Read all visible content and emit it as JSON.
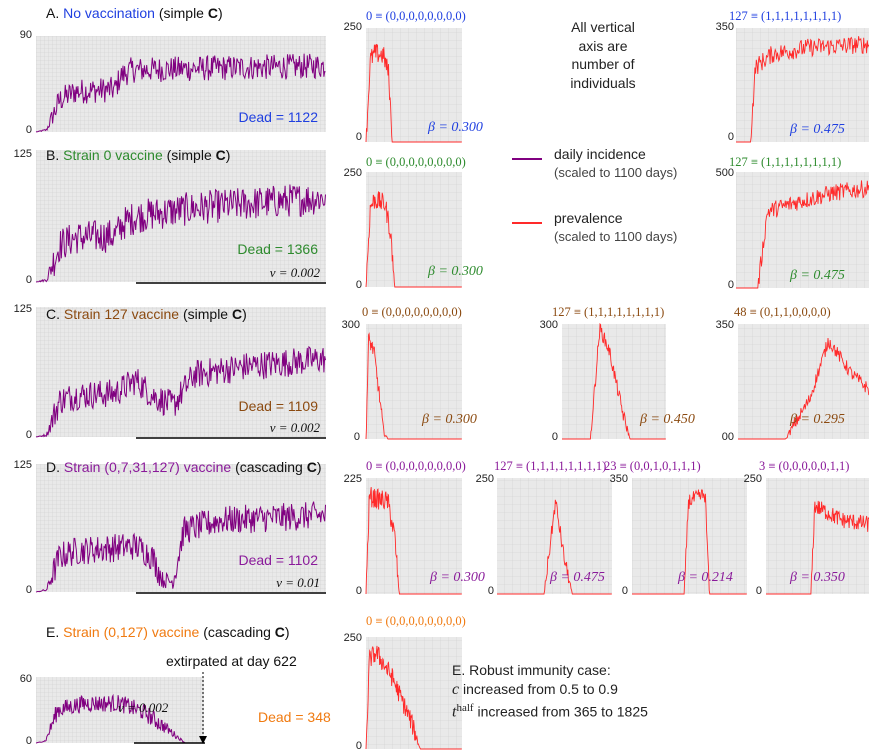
{
  "colors": {
    "incidence": "#800080",
    "prevalence": "#ff2a2a",
    "blue": "#1f3fe0",
    "green": "#2e8b2e",
    "brown": "#8b4a10",
    "purple": "#8a1a9a",
    "orange": "#f07a10",
    "grid_bg": "#e9e9e9"
  },
  "axis_note": [
    "All vertical",
    "axis are",
    "number of",
    "individuals"
  ],
  "legend": [
    {
      "label": "daily incidence",
      "sub": "(scaled to 1100 days)",
      "color": "incidence"
    },
    {
      "label": "prevalence",
      "sub": "(scaled to 1100 days)",
      "color": "prevalence"
    }
  ],
  "robust": {
    "title": "E. Robust immunity case:",
    "c_sym": "c",
    "c_text": "increased from 0.5 to 0.9",
    "t_sym": "t",
    "t_sup": "half",
    "t_text": "increased from 365 to 1825"
  },
  "chart_data": [
    {
      "type": "line",
      "panel": "A",
      "title_prefix": "A.",
      "title_colored": "No vaccination",
      "title_suffix_pre": "(simple ",
      "title_bold": "C",
      "title_suffix_post": ")",
      "title_color": "blue",
      "ylim": [
        0,
        90
      ],
      "ytick_top": "90",
      "ytick_bottom": "0",
      "dead_label": "Dead = 1122",
      "dead": 1122,
      "v_label": "",
      "extirpated": "",
      "series": "incidence",
      "profile": [
        [
          0,
          0
        ],
        [
          40,
          2
        ],
        [
          90,
          30
        ],
        [
          150,
          38
        ],
        [
          300,
          40
        ],
        [
          320,
          52
        ],
        [
          360,
          58
        ],
        [
          700,
          60
        ],
        [
          1100,
          62
        ]
      ],
      "noise": 12
    },
    {
      "type": "line",
      "panel": "B",
      "title_prefix": "B.",
      "title_colored": "Strain 0 vaccine",
      "title_suffix_pre": "(simple ",
      "title_bold": "C",
      "title_suffix_post": ")",
      "title_color": "green",
      "ylim": [
        0,
        125
      ],
      "ytick_top": "125",
      "ytick_bottom": "0",
      "dead_label": "Dead = 1366",
      "dead": 1366,
      "v_label": "v = 0.002",
      "extirpated": "",
      "series": "incidence",
      "profile": [
        [
          0,
          0
        ],
        [
          40,
          2
        ],
        [
          90,
          35
        ],
        [
          150,
          42
        ],
        [
          300,
          44
        ],
        [
          330,
          55
        ],
        [
          380,
          62
        ],
        [
          600,
          70
        ],
        [
          1100,
          80
        ]
      ],
      "noise": 16
    },
    {
      "type": "line",
      "panel": "C",
      "title_prefix": "C.",
      "title_colored": "Strain 127 vaccine",
      "title_suffix_pre": "(simple ",
      "title_bold": "C",
      "title_suffix_post": ")",
      "title_color": "brown",
      "ylim": [
        0,
        125
      ],
      "ytick_top": "125",
      "ytick_bottom": "0",
      "dead_label": "Dead = 1109",
      "dead": 1109,
      "v_label": "v = 0.002",
      "extirpated": "",
      "series": "incidence",
      "profile": [
        [
          0,
          0
        ],
        [
          40,
          2
        ],
        [
          90,
          35
        ],
        [
          150,
          40
        ],
        [
          300,
          42
        ],
        [
          380,
          55
        ],
        [
          440,
          40
        ],
        [
          520,
          30
        ],
        [
          600,
          60
        ],
        [
          800,
          68
        ],
        [
          1100,
          75
        ]
      ],
      "noise": 14
    },
    {
      "type": "line",
      "panel": "D",
      "title_prefix": "D.",
      "title_colored": "Strain (0,7,31,127) vaccine",
      "title_suffix_pre": "(cascading ",
      "title_bold": "C",
      "title_suffix_post": ")",
      "title_color": "purple",
      "ylim": [
        0,
        125
      ],
      "ytick_top": "125",
      "ytick_bottom": "0",
      "dead_label": "Dead = 1102",
      "dead": 1102,
      "v_label": "v = 0.01",
      "extirpated": "",
      "series": "incidence",
      "profile": [
        [
          0,
          0
        ],
        [
          40,
          2
        ],
        [
          90,
          35
        ],
        [
          150,
          40
        ],
        [
          380,
          45
        ],
        [
          440,
          35
        ],
        [
          480,
          12
        ],
        [
          520,
          10
        ],
        [
          560,
          60
        ],
        [
          700,
          70
        ],
        [
          1100,
          75
        ]
      ],
      "noise": 14
    },
    {
      "type": "line",
      "panel": "E",
      "title_prefix": "E.",
      "title_colored": "Strain (0,127) vaccine",
      "title_suffix_pre": "(cascading ",
      "title_bold": "C",
      "title_suffix_post": ")",
      "title_color": "orange",
      "ylim": [
        0,
        60
      ],
      "ytick_top": "60",
      "ytick_bottom": "0",
      "dead_label": "Dead = 348",
      "dead": 348,
      "v_label": "v = 0.002",
      "extirpated": "extirpated at day 622",
      "series": "incidence",
      "profile": [
        [
          0,
          0
        ],
        [
          40,
          2
        ],
        [
          90,
          30
        ],
        [
          200,
          36
        ],
        [
          350,
          36
        ],
        [
          450,
          28
        ],
        [
          540,
          14
        ],
        [
          622,
          0
        ]
      ],
      "noise": 8
    },
    {
      "type": "line",
      "row": "A",
      "strain_label": "0 ≡ (0,0,0,0,0,0,0,0)",
      "label_color": "blue",
      "beta": "β = 0.300",
      "ytick_top": "250",
      "ytick_bottom": "0",
      "ylim": [
        0,
        250
      ],
      "series": "prevalence",
      "profile": [
        [
          0,
          0
        ],
        [
          50,
          180
        ],
        [
          100,
          195
        ],
        [
          200,
          190
        ],
        [
          260,
          150
        ],
        [
          300,
          0
        ],
        [
          1100,
          0
        ]
      ],
      "noise": 22
    },
    {
      "type": "line",
      "row": "A",
      "strain_label": "127 ≡ (1,1,1,1,1,1,1,1)",
      "label_color": "blue",
      "beta": "β = 0.475",
      "ytick_top": "350",
      "ytick_bottom": "0",
      "ylim": [
        0,
        350
      ],
      "series": "prevalence",
      "profile": [
        [
          0,
          0
        ],
        [
          120,
          0
        ],
        [
          160,
          230
        ],
        [
          300,
          270
        ],
        [
          600,
          290
        ],
        [
          1100,
          300
        ]
      ],
      "noise": 28
    },
    {
      "type": "line",
      "row": "B",
      "strain_label": "0 ≡ (0,0,0,0,0,0,0,0)",
      "label_color": "green",
      "beta": "β = 0.300",
      "ytick_top": "250",
      "ytick_bottom": "0",
      "ylim": [
        0,
        250
      ],
      "series": "prevalence",
      "profile": [
        [
          0,
          0
        ],
        [
          50,
          175
        ],
        [
          100,
          190
        ],
        [
          220,
          180
        ],
        [
          280,
          120
        ],
        [
          330,
          0
        ],
        [
          1100,
          0
        ]
      ],
      "noise": 22
    },
    {
      "type": "line",
      "row": "B",
      "strain_label": "127 ≡ (1,1,1,1,1,1,1,1)",
      "label_color": "green",
      "beta": "β = 0.475",
      "ytick_top": "500",
      "ytick_bottom": "0",
      "ylim": [
        0,
        500
      ],
      "series": "prevalence",
      "profile": [
        [
          0,
          0
        ],
        [
          180,
          0
        ],
        [
          260,
          330
        ],
        [
          500,
          370
        ],
        [
          800,
          410
        ],
        [
          1100,
          430
        ]
      ],
      "noise": 38
    },
    {
      "type": "line",
      "row": "C",
      "strain_label": "0 ≡ (0,0,0,0,0,0,0,0)",
      "label_color": "brown",
      "beta": "β = 0.300",
      "ytick_top": "300",
      "ytick_bottom": "0",
      "ylim": [
        0,
        300
      ],
      "series": "prevalence",
      "profile": [
        [
          0,
          0
        ],
        [
          30,
          260
        ],
        [
          90,
          230
        ],
        [
          150,
          120
        ],
        [
          200,
          20
        ],
        [
          250,
          0
        ],
        [
          1100,
          0
        ]
      ],
      "noise": 20
    },
    {
      "type": "line",
      "row": "C",
      "strain_label": "127 ≡ (1,1,1,1,1,1,1,1)",
      "label_color": "brown",
      "beta": "β = 0.450",
      "ytick_top": "300",
      "ytick_bottom": "0",
      "ylim": [
        0,
        300
      ],
      "series": "prevalence",
      "profile": [
        [
          0,
          0
        ],
        [
          300,
          0
        ],
        [
          400,
          290
        ],
        [
          500,
          230
        ],
        [
          650,
          60
        ],
        [
          720,
          0
        ],
        [
          1100,
          0
        ]
      ],
      "noise": 18
    },
    {
      "type": "line",
      "row": "C",
      "strain_label": "48 ≡ (0,1,1,0,0,0,0)",
      "label_color": "brown",
      "beta": "β = 0.295",
      "ytick_top": "350",
      "ytick_bottom": "00",
      "ylim": [
        0,
        350
      ],
      "series": "prevalence",
      "profile": [
        [
          0,
          0
        ],
        [
          400,
          0
        ],
        [
          600,
          120
        ],
        [
          760,
          300
        ],
        [
          950,
          200
        ],
        [
          1100,
          150
        ]
      ],
      "noise": 20
    },
    {
      "type": "line",
      "row": "D",
      "strain_label": "0 ≡ (0,0,0,0,0,0,0,0)",
      "label_color": "purple",
      "beta": "β = 0.300",
      "ytick_top": "225",
      "ytick_bottom": "0",
      "ylim": [
        0,
        225
      ],
      "series": "prevalence",
      "profile": [
        [
          0,
          0
        ],
        [
          40,
          190
        ],
        [
          100,
          185
        ],
        [
          250,
          180
        ],
        [
          330,
          110
        ],
        [
          380,
          0
        ],
        [
          1100,
          0
        ]
      ],
      "noise": 20
    },
    {
      "type": "line",
      "row": "D",
      "strain_label": "127 ≡ (1,1,1,1,1,1,1,1)",
      "label_color": "purple",
      "beta": "β = 0.475",
      "ytick_top": "250",
      "ytick_bottom": "0",
      "ylim": [
        0,
        250
      ],
      "series": "prevalence",
      "profile": [
        [
          0,
          0
        ],
        [
          450,
          0
        ],
        [
          560,
          200
        ],
        [
          640,
          80
        ],
        [
          720,
          0
        ],
        [
          1100,
          0
        ]
      ],
      "noise": 16
    },
    {
      "type": "line",
      "row": "D",
      "strain_label": "23 ≡ (0,0,1,0,1,1,1)",
      "label_color": "purple",
      "beta": "β = 0.214",
      "ytick_top": "350",
      "ytick_bottom": "0",
      "ylim": [
        0,
        350
      ],
      "series": "prevalence",
      "profile": [
        [
          0,
          0
        ],
        [
          500,
          0
        ],
        [
          540,
          280
        ],
        [
          700,
          300
        ],
        [
          740,
          0
        ],
        [
          1100,
          0
        ]
      ],
      "noise": 24
    },
    {
      "type": "line",
      "row": "D",
      "strain_label": "3 ≡ (0,0,0,0,0,1,1)",
      "label_color": "purple",
      "beta": "β = 0.350",
      "ytick_top": "250",
      "ytick_bottom": "0",
      "ylim": [
        0,
        250
      ],
      "series": "prevalence",
      "profile": [
        [
          0,
          0
        ],
        [
          480,
          0
        ],
        [
          520,
          190
        ],
        [
          800,
          160
        ],
        [
          1100,
          150
        ]
      ],
      "noise": 18
    },
    {
      "type": "line",
      "row": "E",
      "strain_label": "0 ≡ (0,0,0,0,0,0,0,0)",
      "label_color": "orange",
      "beta": "",
      "ytick_top": "250",
      "ytick_bottom": "0",
      "ylim": [
        0,
        250
      ],
      "series": "prevalence",
      "profile": [
        [
          0,
          0
        ],
        [
          40,
          200
        ],
        [
          120,
          215
        ],
        [
          300,
          160
        ],
        [
          520,
          60
        ],
        [
          622,
          0
        ],
        [
          1100,
          0
        ]
      ],
      "noise": 22
    }
  ]
}
